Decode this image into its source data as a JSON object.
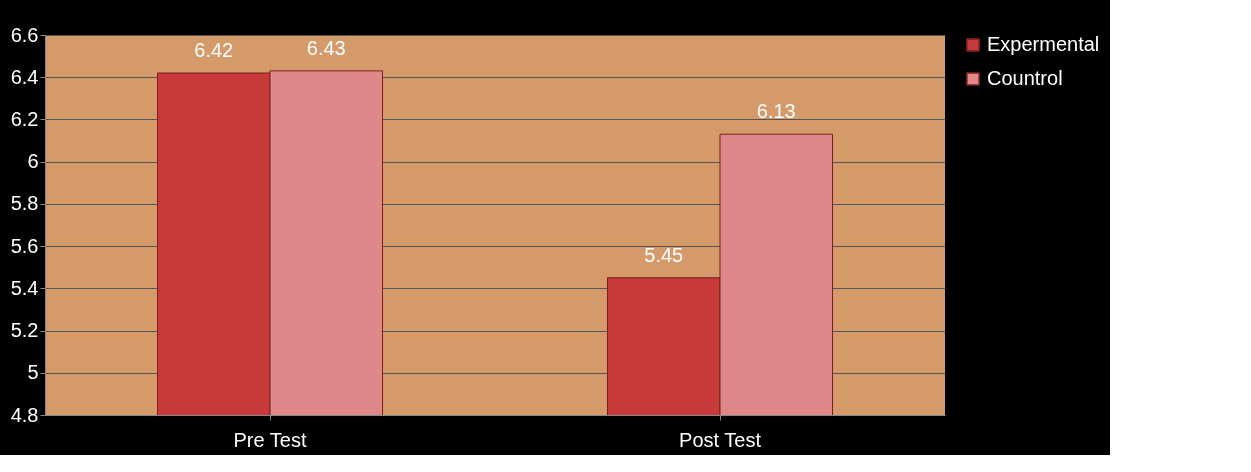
{
  "chart_data": {
    "type": "bar",
    "categories": [
      "Pre Test",
      "Post Test"
    ],
    "series": [
      {
        "name": "Expermental",
        "color": "#c8393a",
        "values": [
          6.42,
          5.45
        ]
      },
      {
        "name": "Countrol",
        "color": "#e0878a",
        "values": [
          6.43,
          6.13
        ]
      }
    ],
    "ylim": [
      4.8,
      6.6
    ],
    "yticks": [
      4.8,
      5,
      5.2,
      5.4,
      5.6,
      5.8,
      6,
      6.2,
      6.4,
      6.6
    ],
    "grid": "y",
    "legend": "right",
    "data_labels": true
  }
}
